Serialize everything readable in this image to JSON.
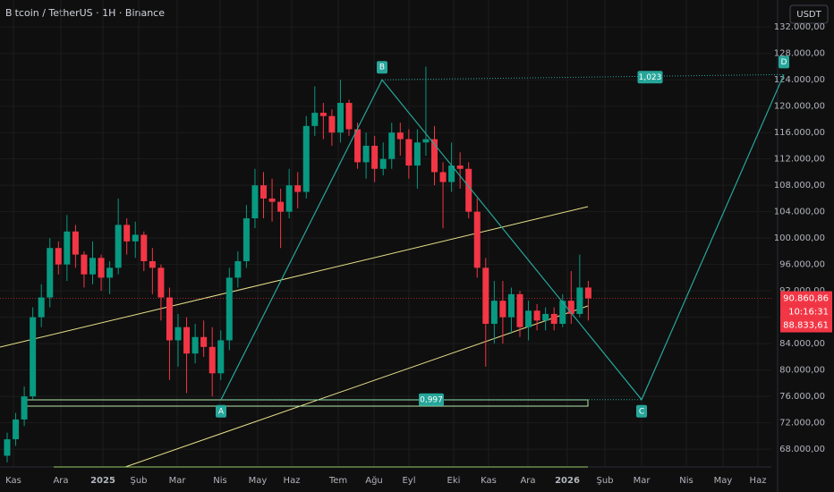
{
  "chart_data": {
    "type": "candlestick",
    "title": "Bitcoin / TetherUS · 1H · Binance",
    "currency_button": "USDT",
    "up_color": "#089981",
    "down_color": "#f23645",
    "open": [
      67000,
      69500,
      72500,
      76000,
      88000,
      91000,
      98500,
      96000,
      101000,
      97500,
      94500,
      97000,
      94000,
      95500,
      102000,
      99500,
      100500,
      96500,
      95500,
      91000,
      84500,
      86500,
      82500,
      85000,
      83500,
      79500,
      84500,
      94000,
      96500,
      103000,
      108000,
      106000,
      105500,
      104000,
      108000,
      107000,
      117000,
      119000,
      118500,
      116000,
      120500,
      116500,
      111500,
      114000,
      110500,
      112000,
      116000,
      115000,
      111000,
      114500,
      115000,
      110000,
      108500,
      111000,
      110500,
      104000,
      95500,
      87000,
      90500,
      88000,
      91500,
      86500,
      89000,
      87500,
      88500,
      87000,
      90500,
      88500,
      92500
    ],
    "high": [
      70500,
      73500,
      77500,
      89500,
      93000,
      100000,
      99500,
      103500,
      102000,
      98000,
      99500,
      97500,
      96500,
      106000,
      103000,
      102500,
      101000,
      98500,
      96000,
      92500,
      88500,
      88000,
      87000,
      87500,
      86500,
      86000,
      95500,
      98000,
      105000,
      110500,
      110000,
      109000,
      107500,
      110500,
      110000,
      118500,
      123000,
      120500,
      119500,
      124000,
      121000,
      117500,
      116000,
      115500,
      114500,
      117500,
      117500,
      116500,
      116500,
      126000,
      117000,
      111500,
      114500,
      113000,
      111500,
      106000,
      97000,
      93500,
      93500,
      92500,
      92000,
      90500,
      90000,
      89500,
      89500,
      91500,
      95000,
      97500,
      93500
    ],
    "low": [
      66000,
      68500,
      71500,
      75500,
      86500,
      89500,
      94500,
      93500,
      95500,
      92500,
      93000,
      92000,
      91500,
      94500,
      97500,
      97000,
      95000,
      91500,
      87500,
      78500,
      80500,
      76500,
      81000,
      82000,
      76000,
      78500,
      83000,
      92500,
      95500,
      101500,
      103000,
      102500,
      98500,
      103000,
      104500,
      106000,
      115500,
      115000,
      114000,
      114500,
      115500,
      110500,
      109000,
      108500,
      109500,
      110500,
      112500,
      109000,
      107500,
      112500,
      108000,
      101500,
      107000,
      107500,
      103000,
      94000,
      80500,
      84000,
      84000,
      85500,
      85000,
      84500,
      86000,
      86000,
      86000,
      86500,
      87000,
      88000,
      87500
    ],
    "close": [
      69500,
      72500,
      76000,
      88000,
      91000,
      98500,
      96000,
      101000,
      97500,
      94500,
      97000,
      94000,
      95500,
      102000,
      99500,
      100500,
      96500,
      95500,
      91000,
      84500,
      86500,
      82500,
      85000,
      83500,
      79500,
      84500,
      94000,
      96500,
      103000,
      108000,
      106000,
      105500,
      104000,
      108000,
      107000,
      117000,
      119000,
      118500,
      116000,
      120500,
      116500,
      111500,
      114000,
      110500,
      112000,
      116000,
      115000,
      111000,
      114500,
      115000,
      110000,
      108500,
      111000,
      110500,
      104000,
      95500,
      87000,
      90500,
      88000,
      91500,
      86500,
      89000,
      87500,
      88500,
      87000,
      90500,
      88500,
      92500,
      90860
    ],
    "x_labels": [
      "Kas",
      "Ara",
      "2025",
      "Şub",
      "Mar",
      "Nis",
      "May",
      "Haz",
      "Tem",
      "Ağu",
      "Eyl",
      "Eki",
      "Kas",
      "Ara",
      "2026",
      "Şub",
      "Mar",
      "Nis",
      "May",
      "Haz"
    ],
    "ylim": [
      65300,
      136100
    ],
    "yticks": [
      {
        "value": 132000,
        "label": "132.000,00"
      },
      {
        "value": 128000,
        "label": "128.000,00"
      },
      {
        "value": 124000,
        "label": "124.000,00"
      },
      {
        "value": 120000,
        "label": "120.000,00"
      },
      {
        "value": 116000,
        "label": "116.000,00"
      },
      {
        "value": 112000,
        "label": "112.000,00"
      },
      {
        "value": 108000,
        "label": "108.000,00"
      },
      {
        "value": 104000,
        "label": "104.000,00"
      },
      {
        "value": 100000,
        "label": "100.000,00"
      },
      {
        "value": 96000,
        "label": "96.000,00"
      },
      {
        "value": 92000,
        "label": "92.000,00"
      },
      {
        "value": 88000,
        "label": "88.000,00"
      },
      {
        "value": 84000,
        "label": "84.000,00"
      },
      {
        "value": 80000,
        "label": "80.000,00"
      },
      {
        "value": 76000,
        "label": "76.000,00"
      },
      {
        "value": 72000,
        "label": "72.000,00"
      },
      {
        "value": 68000,
        "label": "68.000,00"
      }
    ],
    "grid": true,
    "last_price": {
      "value": 90860.86,
      "label": "90.860,86"
    },
    "countdown": "10:16:31",
    "second_price": {
      "value": 88833.61,
      "label": "88.833,61"
    },
    "pattern": {
      "color": "#26a69a",
      "points": [
        {
          "label": "A",
          "price": 75500
        },
        {
          "label": "B",
          "price": 124000
        },
        {
          "label": "C",
          "price": 75500
        },
        {
          "label": "D",
          "price": 124800
        }
      ],
      "ratios": [
        "0,997",
        "1,023"
      ]
    }
  }
}
